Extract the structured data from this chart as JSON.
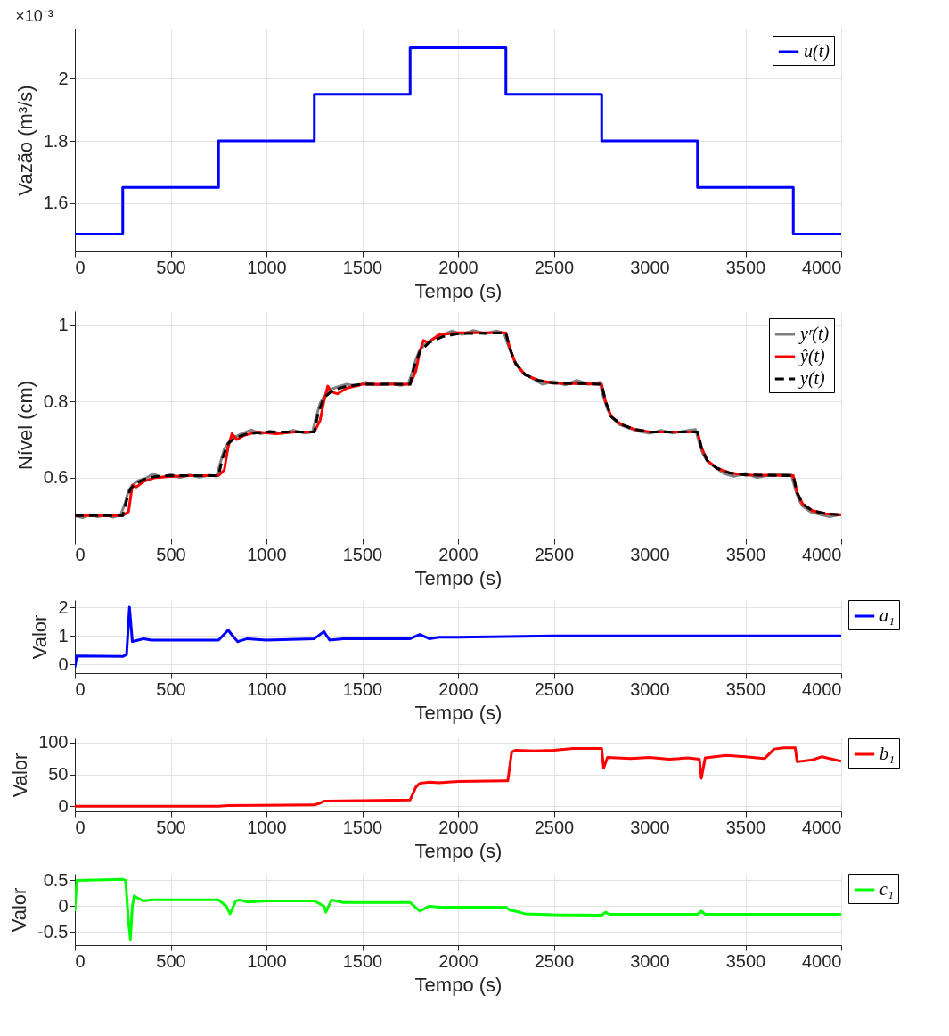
{
  "chart_data": [
    {
      "type": "step",
      "xlabel": "Tempo (s)",
      "ylabel": "Vazão (m³/s)",
      "annotations": [
        "×10⁻³"
      ],
      "xlim": [
        0,
        4000
      ],
      "xticks": [
        0,
        500,
        1000,
        1500,
        2000,
        2500,
        3000,
        3500,
        4000
      ],
      "ylim": [
        1.444,
        2.162
      ],
      "yticks": [
        1.6,
        1.8,
        2
      ],
      "grid": true,
      "legend": "top right",
      "x": [
        0,
        250,
        750,
        1250,
        1750,
        2250,
        2750,
        3250,
        3750,
        4000
      ],
      "series": [
        {
          "name": "u(t)",
          "color": "#0000ff",
          "values": [
            1.5,
            1.65,
            1.8,
            1.95,
            2.1,
            1.95,
            1.8,
            1.65,
            1.5,
            1.5
          ]
        }
      ]
    },
    {
      "type": "line",
      "xlabel": "Tempo (s)",
      "ylabel": "Nível (cm)",
      "xlim": [
        0,
        4000
      ],
      "xticks": [
        0,
        500,
        1000,
        1500,
        2000,
        2500,
        3000,
        3500,
        4000
      ],
      "ylim": [
        0.44,
        1.037
      ],
      "yticks": [
        0.6,
        0.8,
        1
      ],
      "grid": true,
      "legend": "top right",
      "series": [
        {
          "name": "yʳ(t)",
          "color": "#808080",
          "line_style": "solid",
          "x": [
            0,
            40,
            80,
            120,
            160,
            200,
            240,
            260,
            280,
            300,
            330,
            370,
            410,
            450,
            500,
            550,
            600,
            650,
            700,
            740,
            760,
            780,
            800,
            830,
            870,
            920,
            970,
            1020,
            1080,
            1140,
            1200,
            1240,
            1260,
            1280,
            1300,
            1330,
            1370,
            1420,
            1470,
            1520,
            1580,
            1640,
            1700,
            1740,
            1760,
            1780,
            1800,
            1830,
            1870,
            1920,
            1970,
            2020,
            2080,
            2140,
            2200,
            2240,
            2260,
            2280,
            2300,
            2340,
            2390,
            2440,
            2500,
            2560,
            2620,
            2680,
            2740,
            2760,
            2780,
            2800,
            2840,
            2890,
            2940,
            3000,
            3060,
            3120,
            3180,
            3240,
            3260,
            3280,
            3300,
            3340,
            3390,
            3440,
            3500,
            3560,
            3620,
            3680,
            3740,
            3760,
            3780,
            3800,
            3840,
            3890,
            3940,
            4000
          ],
          "values": [
            0.5,
            0.495,
            0.503,
            0.497,
            0.502,
            0.496,
            0.503,
            0.53,
            0.565,
            0.58,
            0.592,
            0.598,
            0.61,
            0.6,
            0.608,
            0.6,
            0.607,
            0.601,
            0.606,
            0.604,
            0.64,
            0.675,
            0.69,
            0.705,
            0.715,
            0.725,
            0.715,
            0.722,
            0.716,
            0.724,
            0.717,
            0.72,
            0.76,
            0.795,
            0.812,
            0.83,
            0.838,
            0.845,
            0.84,
            0.85,
            0.843,
            0.849,
            0.842,
            0.846,
            0.875,
            0.91,
            0.935,
            0.95,
            0.965,
            0.975,
            0.985,
            0.976,
            0.986,
            0.978,
            0.985,
            0.98,
            0.95,
            0.925,
            0.9,
            0.875,
            0.86,
            0.845,
            0.852,
            0.843,
            0.855,
            0.845,
            0.85,
            0.81,
            0.78,
            0.76,
            0.74,
            0.73,
            0.722,
            0.716,
            0.724,
            0.717,
            0.722,
            0.726,
            0.69,
            0.66,
            0.645,
            0.628,
            0.61,
            0.603,
            0.611,
            0.6,
            0.606,
            0.609,
            0.607,
            0.57,
            0.54,
            0.525,
            0.51,
            0.503,
            0.497,
            0.503
          ]
        },
        {
          "name": "ŷ(t)",
          "color": "#ff0000",
          "line_style": "solid",
          "x": [
            0,
            250,
            280,
            300,
            320,
            360,
            420,
            500,
            600,
            750,
            780,
            800,
            820,
            845,
            880,
            950,
            1050,
            1150,
            1250,
            1280,
            1300,
            1320,
            1340,
            1370,
            1420,
            1500,
            1750,
            1780,
            1800,
            1820,
            1840,
            1860,
            1900,
            2000,
            2250,
            2270,
            2300,
            2350,
            2420,
            2500,
            2750,
            2770,
            2800,
            2850,
            2920,
            3000,
            3250,
            3270,
            3300,
            3350,
            3420,
            3500,
            3750,
            3770,
            3800,
            3850,
            3920,
            4000
          ],
          "values": [
            0.5,
            0.5,
            0.51,
            0.58,
            0.575,
            0.59,
            0.6,
            0.603,
            0.605,
            0.605,
            0.62,
            0.68,
            0.715,
            0.7,
            0.71,
            0.72,
            0.715,
            0.72,
            0.72,
            0.75,
            0.8,
            0.84,
            0.825,
            0.82,
            0.835,
            0.845,
            0.845,
            0.88,
            0.93,
            0.96,
            0.955,
            0.96,
            0.975,
            0.98,
            0.98,
            0.94,
            0.9,
            0.87,
            0.855,
            0.848,
            0.845,
            0.8,
            0.76,
            0.74,
            0.727,
            0.72,
            0.72,
            0.68,
            0.645,
            0.625,
            0.612,
            0.607,
            0.605,
            0.56,
            0.53,
            0.513,
            0.505,
            0.502
          ]
        },
        {
          "name": "y(t)",
          "color": "#000000",
          "line_style": "dashed",
          "x": [
            0,
            250,
            270,
            290,
            320,
            360,
            420,
            500,
            750,
            770,
            800,
            840,
            900,
            1000,
            1250,
            1270,
            1300,
            1350,
            1420,
            1500,
            1750,
            1770,
            1800,
            1850,
            1920,
            2000,
            2250,
            2270,
            2300,
            2350,
            2420,
            2500,
            2750,
            2770,
            2800,
            2850,
            2920,
            3000,
            3250,
            3270,
            3300,
            3350,
            3420,
            3500,
            3750,
            3770,
            3800,
            3850,
            3920,
            4000
          ],
          "values": [
            0.5,
            0.5,
            0.54,
            0.57,
            0.585,
            0.595,
            0.603,
            0.605,
            0.605,
            0.65,
            0.69,
            0.705,
            0.715,
            0.72,
            0.72,
            0.77,
            0.81,
            0.83,
            0.84,
            0.845,
            0.845,
            0.89,
            0.93,
            0.955,
            0.97,
            0.978,
            0.98,
            0.94,
            0.9,
            0.87,
            0.855,
            0.848,
            0.845,
            0.8,
            0.76,
            0.74,
            0.727,
            0.72,
            0.72,
            0.68,
            0.645,
            0.625,
            0.612,
            0.607,
            0.605,
            0.56,
            0.53,
            0.513,
            0.505,
            0.502
          ]
        }
      ]
    },
    {
      "type": "line",
      "xlabel": "Tempo (s)",
      "ylabel": "Valor",
      "xlim": [
        0,
        4000
      ],
      "xticks": [
        0,
        500,
        1000,
        1500,
        2000,
        2500,
        3000,
        3500,
        4000
      ],
      "ylim": [
        -0.3,
        2.25
      ],
      "yticks": [
        0,
        1,
        2
      ],
      "grid": true,
      "legend": "right",
      "series": [
        {
          "name": "a₁",
          "color": "#0000ff",
          "x": [
            0,
            10,
            250,
            270,
            285,
            300,
            330,
            360,
            400,
            500,
            750,
            800,
            830,
            850,
            900,
            1000,
            1250,
            1300,
            1330,
            1400,
            1500,
            1750,
            1800,
            1850,
            1900,
            2000,
            2500,
            3000,
            3500,
            4000
          ],
          "values": [
            -0.1,
            0.3,
            0.28,
            0.35,
            2.0,
            0.8,
            0.85,
            0.9,
            0.85,
            0.85,
            0.85,
            1.2,
            0.95,
            0.8,
            0.9,
            0.85,
            0.9,
            1.15,
            0.85,
            0.9,
            0.9,
            0.9,
            1.05,
            0.9,
            0.95,
            0.95,
            1.0,
            1.0,
            1.0,
            1.0
          ]
        }
      ]
    },
    {
      "type": "line",
      "xlabel": "Tempo (s)",
      "ylabel": "Valor",
      "xlim": [
        0,
        4000
      ],
      "xticks": [
        0,
        500,
        1000,
        1500,
        2000,
        2500,
        3000,
        3500,
        4000
      ],
      "ylim": [
        -8,
        107
      ],
      "yticks": [
        0,
        50,
        100
      ],
      "grid": true,
      "legend": "right",
      "series": [
        {
          "name": "b₁",
          "color": "#ff0000",
          "x": [
            0,
            750,
            800,
            1250,
            1280,
            1300,
            1500,
            1750,
            1780,
            1800,
            1850,
            1900,
            2000,
            2250,
            2260,
            2280,
            2300,
            2400,
            2500,
            2600,
            2700,
            2750,
            2760,
            2780,
            2900,
            3000,
            3100,
            3200,
            3260,
            3270,
            3290,
            3400,
            3500,
            3600,
            3650,
            3700,
            3760,
            3770,
            3850,
            3900,
            4000
          ],
          "values": [
            0,
            0,
            1,
            2,
            5,
            8,
            9,
            10,
            30,
            36,
            38,
            37,
            39,
            40,
            40,
            85,
            88,
            87,
            88,
            91,
            91,
            91,
            60,
            77,
            75,
            77,
            74,
            76,
            74,
            44,
            76,
            80,
            78,
            75,
            90,
            92,
            92,
            70,
            73,
            78,
            71
          ]
        }
      ]
    },
    {
      "type": "line",
      "xlabel": "Tempo (s)",
      "ylabel": "Valor",
      "xlim": [
        0,
        4000
      ],
      "xticks": [
        0,
        500,
        1000,
        1500,
        2000,
        2500,
        3000,
        3500,
        4000
      ],
      "ylim": [
        -0.76,
        0.63
      ],
      "yticks": [
        0.5,
        0,
        -0.5
      ],
      "grid": true,
      "legend": "right",
      "series": [
        {
          "name": "c₁",
          "color": "#00ff00",
          "x": [
            0,
            10,
            250,
            265,
            280,
            290,
            300,
            310,
            330,
            360,
            400,
            500,
            750,
            790,
            810,
            840,
            860,
            900,
            1000,
            1250,
            1300,
            1310,
            1340,
            1400,
            1500,
            1750,
            1800,
            1850,
            1900,
            2000,
            2250,
            2270,
            2300,
            2350,
            2500,
            2750,
            2770,
            2790,
            3000,
            3250,
            3270,
            3290,
            4000
          ],
          "values": [
            -0.1,
            0.5,
            0.52,
            0.5,
            -0.3,
            -0.65,
            0.0,
            0.2,
            0.15,
            0.1,
            0.12,
            0.12,
            0.12,
            0.0,
            -0.15,
            0.1,
            0.12,
            0.08,
            0.1,
            0.1,
            0.0,
            -0.12,
            0.12,
            0.07,
            0.07,
            0.07,
            -0.1,
            0.0,
            -0.02,
            -0.02,
            -0.02,
            -0.08,
            -0.1,
            -0.15,
            -0.17,
            -0.18,
            -0.12,
            -0.16,
            -0.16,
            -0.16,
            -0.1,
            -0.16,
            -0.16
          ]
        }
      ]
    }
  ]
}
